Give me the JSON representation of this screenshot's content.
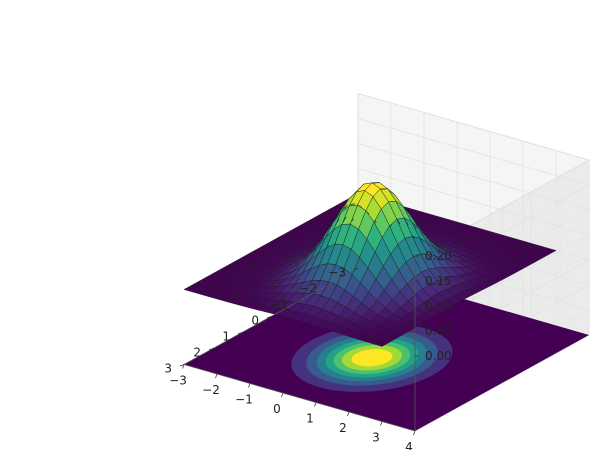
{
  "chart_data": {
    "type": "surface3d",
    "function": "bivariate gaussian density",
    "gaussian": {
      "mu_x": 0.5,
      "mu_y": 0.5,
      "sigma_x": 0.9,
      "sigma_y": 0.9,
      "peak": 0.2
    },
    "surface_grid": {
      "x_range": [
        -3,
        3
      ],
      "y_range": [
        -3,
        3
      ],
      "n": 24
    },
    "contour_levels": [
      0.0,
      0.025,
      0.05,
      0.075,
      0.1,
      0.125,
      0.15,
      0.175
    ],
    "colormap": "viridis",
    "colormap_stops": [
      "#440154",
      "#482878",
      "#3e4989",
      "#31688e",
      "#26828e",
      "#1f9e89",
      "#35b779",
      "#6ece58",
      "#b5de2b",
      "#fde725"
    ],
    "view": {
      "elevation_deg": 25,
      "azimuth_deg": -30
    },
    "x_ticks": [
      "−3",
      "−2",
      "−1",
      "0",
      "1",
      "2",
      "3",
      "4"
    ],
    "y_ticks": [
      "−3",
      "−2",
      "−1",
      "0",
      "1",
      "2",
      "3"
    ],
    "z_ticks": [
      "0.00",
      "0.05",
      "0.10",
      "0.15",
      "0.20"
    ],
    "x_tick_values": [
      -3,
      -2,
      -1,
      0,
      1,
      2,
      3,
      4
    ],
    "y_tick_values": [
      -3,
      -2,
      -1,
      0,
      1,
      2,
      3
    ],
    "z_tick_values": [
      0.0,
      0.05,
      0.1,
      0.15,
      0.2
    ],
    "xlim": [
      -3,
      4
    ],
    "ylim": [
      -3,
      3
    ],
    "zlim": [
      -0.15,
      0.2
    ],
    "grid": true
  }
}
